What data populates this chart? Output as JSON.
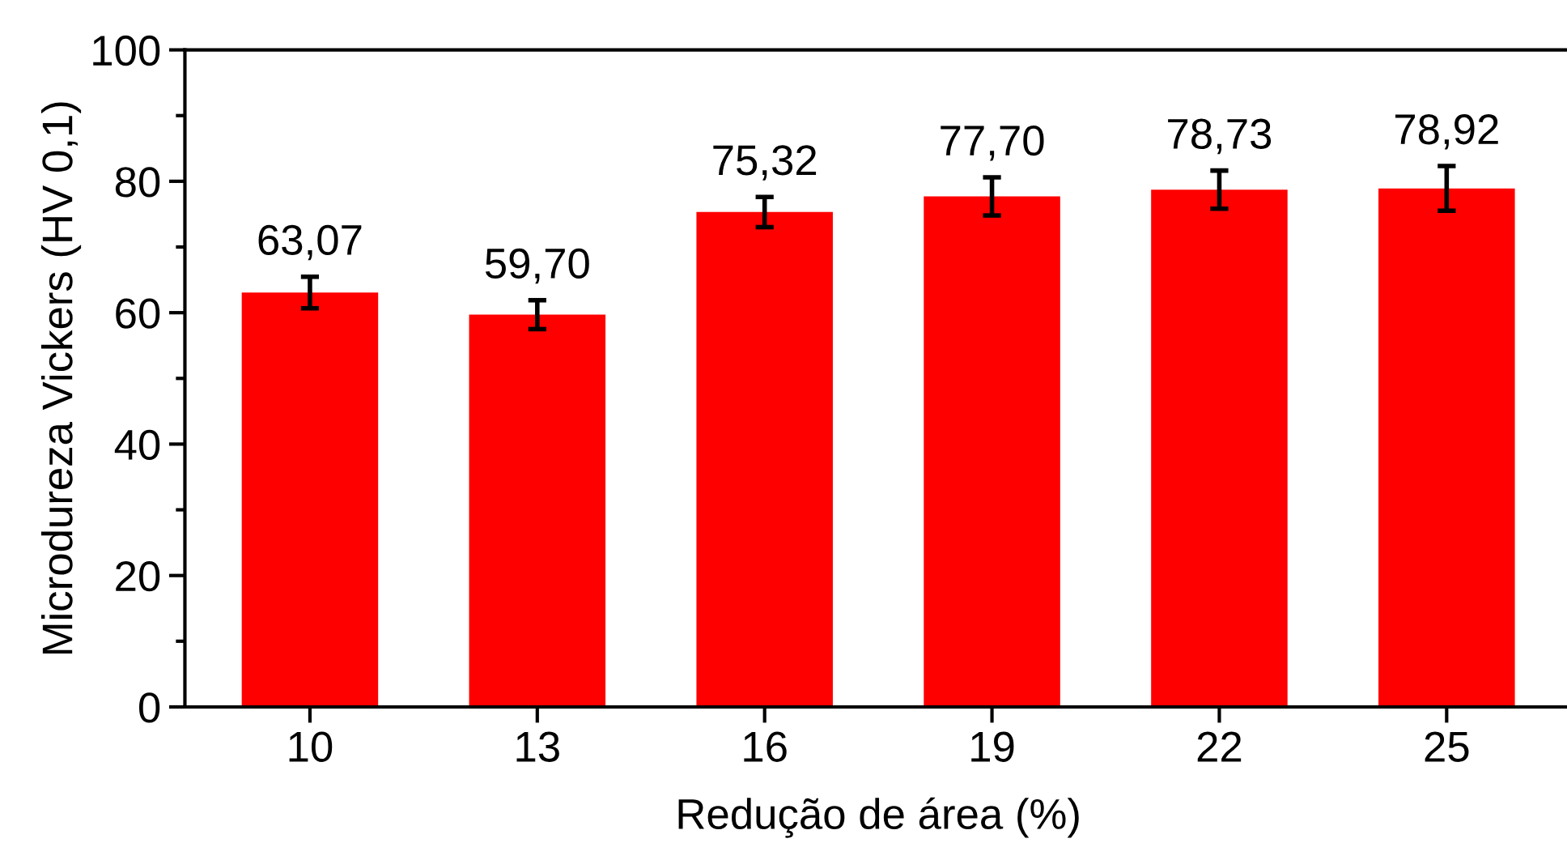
{
  "chart_data": {
    "type": "bar",
    "xlabel": "Redução de área (%)",
    "ylabel": "Microdureza Vickers (HV 0,1)",
    "categories": [
      "10",
      "13",
      "16",
      "19",
      "22",
      "25"
    ],
    "values": [
      63.07,
      59.7,
      75.32,
      77.7,
      78.73,
      78.92
    ],
    "value_labels": [
      "63,07",
      "59,70",
      "75,32",
      "77,70",
      "78,73",
      "78,92"
    ],
    "errors": [
      2.4,
      2.2,
      2.3,
      2.9,
      2.9,
      3.4
    ],
    "color": "#ff0000",
    "ylim": [
      0,
      100
    ],
    "yticks": [
      0,
      20,
      40,
      60,
      80,
      100
    ],
    "grid": false,
    "legend": false
  }
}
